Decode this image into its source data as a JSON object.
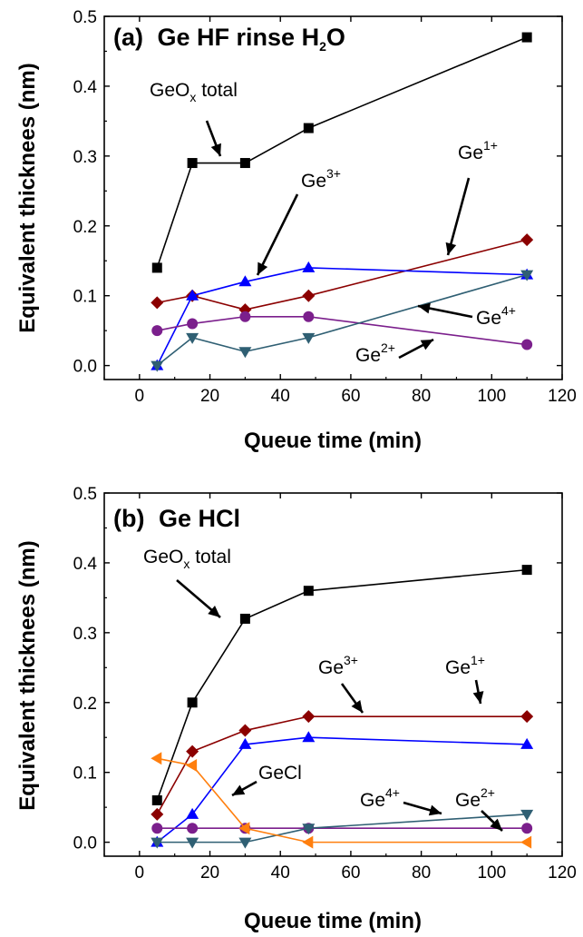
{
  "chart_data": [
    {
      "type": "line",
      "panel_label": "(a)",
      "title_main": "Ge HF rinse H",
      "title_sub": "2",
      "title_tail": "O",
      "xlabel": "Queue time (min)",
      "ylabel": "Equivalent thicknees (nm)",
      "xlim": [
        -10,
        120
      ],
      "ylim": [
        -0.02,
        0.5
      ],
      "xticks": [
        "0",
        "20",
        "40",
        "60",
        "80",
        "100",
        "120"
      ],
      "yticks": [
        "0.0",
        "0.1",
        "0.2",
        "0.3",
        "0.4",
        "0.5"
      ],
      "series": [
        {
          "name": "GeOx total",
          "color": "#000000",
          "marker": "square",
          "x": [
            5,
            15,
            30,
            48,
            110
          ],
          "y": [
            0.14,
            0.29,
            0.29,
            0.34,
            0.47
          ]
        },
        {
          "name": "Ge1+",
          "color": "#8b0000",
          "marker": "diamond",
          "x": [
            5,
            15,
            30,
            48,
            110
          ],
          "y": [
            0.09,
            0.1,
            0.08,
            0.1,
            0.18
          ]
        },
        {
          "name": "Ge3+",
          "color": "#0000ff",
          "marker": "triangle-up",
          "x": [
            5,
            15,
            30,
            48,
            110
          ],
          "y": [
            0.0,
            0.1,
            0.12,
            0.14,
            0.13
          ]
        },
        {
          "name": "Ge2+",
          "color": "#7b1f8c",
          "marker": "circle",
          "x": [
            5,
            15,
            30,
            48,
            110
          ],
          "y": [
            0.05,
            0.06,
            0.07,
            0.07,
            0.03
          ]
        },
        {
          "name": "Ge4+",
          "color": "#2f5f73",
          "marker": "triangle-down",
          "x": [
            5,
            15,
            30,
            48,
            110
          ],
          "y": [
            0.0,
            0.04,
            0.02,
            0.04,
            0.13
          ]
        }
      ],
      "annotations": [
        {
          "base": "GeO",
          "sub": "x",
          "tail": " total"
        },
        {
          "base": "Ge",
          "sup": "3+"
        },
        {
          "base": "Ge",
          "sup": "1+"
        },
        {
          "base": "Ge",
          "sup": "4+"
        },
        {
          "base": "Ge",
          "sup": "2+"
        }
      ]
    },
    {
      "type": "line",
      "panel_label": "(b)",
      "title_main": "Ge HCl",
      "xlabel": "Queue time (min)",
      "ylabel": "Equivalent thicknees (nm)",
      "xlim": [
        -10,
        120
      ],
      "ylim": [
        -0.02,
        0.5
      ],
      "xticks": [
        "0",
        "20",
        "40",
        "60",
        "80",
        "100",
        "120"
      ],
      "yticks": [
        "0.0",
        "0.1",
        "0.2",
        "0.3",
        "0.4",
        "0.5"
      ],
      "series": [
        {
          "name": "GeOx total",
          "color": "#000000",
          "marker": "square",
          "x": [
            5,
            15,
            30,
            48,
            110
          ],
          "y": [
            0.06,
            0.2,
            0.32,
            0.36,
            0.39
          ]
        },
        {
          "name": "Ge1+",
          "color": "#8b0000",
          "marker": "diamond",
          "x": [
            5,
            15,
            30,
            48,
            110
          ],
          "y": [
            0.04,
            0.13,
            0.16,
            0.18,
            0.18
          ]
        },
        {
          "name": "Ge3+",
          "color": "#0000ff",
          "marker": "triangle-up",
          "x": [
            5,
            15,
            30,
            48,
            110
          ],
          "y": [
            0.0,
            0.04,
            0.14,
            0.15,
            0.14
          ]
        },
        {
          "name": "Ge2+",
          "color": "#7b1f8c",
          "marker": "circle",
          "x": [
            5,
            15,
            30,
            48,
            110
          ],
          "y": [
            0.02,
            0.02,
            0.02,
            0.02,
            0.02
          ]
        },
        {
          "name": "Ge4+",
          "color": "#2f5f73",
          "marker": "triangle-down",
          "x": [
            5,
            15,
            30,
            48,
            110
          ],
          "y": [
            0.0,
            0.0,
            0.0,
            0.02,
            0.04
          ]
        },
        {
          "name": "GeCl",
          "color": "#ff7f0e",
          "marker": "triangle-left",
          "x": [
            5,
            15,
            30,
            48,
            110
          ],
          "y": [
            0.12,
            0.11,
            0.02,
            0.0,
            0.0
          ]
        }
      ],
      "annotations": [
        {
          "base": "GeO",
          "sub": "x",
          "tail": " total"
        },
        {
          "base": "Ge",
          "sup": "3+"
        },
        {
          "base": "Ge",
          "sup": "1+"
        },
        {
          "base": "GeCl"
        },
        {
          "base": "Ge",
          "sup": "4+"
        },
        {
          "base": "Ge",
          "sup": "2+"
        }
      ]
    }
  ]
}
